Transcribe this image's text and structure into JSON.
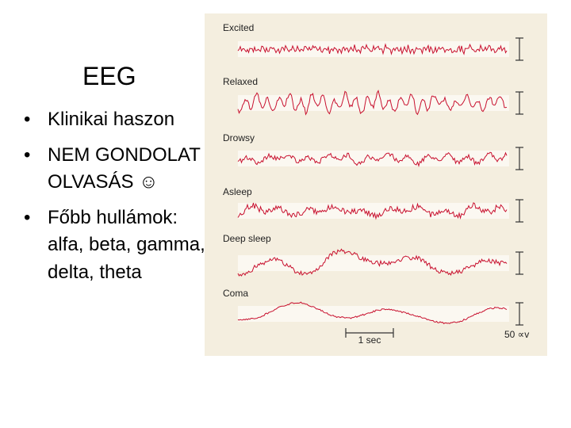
{
  "slide": {
    "title": "EEG",
    "bullets": [
      "Klinikai haszon",
      "NEM GONDOLAT OLVASÁS ☺",
      "Főbb hullámok: alfa, beta, gamma, delta, theta"
    ]
  },
  "figure": {
    "traces": [
      "Excited",
      "Relaxed",
      "Drowsy",
      "Asleep",
      "Deep sleep",
      "Coma"
    ],
    "time_scale": "1 sec",
    "amplitude_scale": "50 ∝v"
  }
}
